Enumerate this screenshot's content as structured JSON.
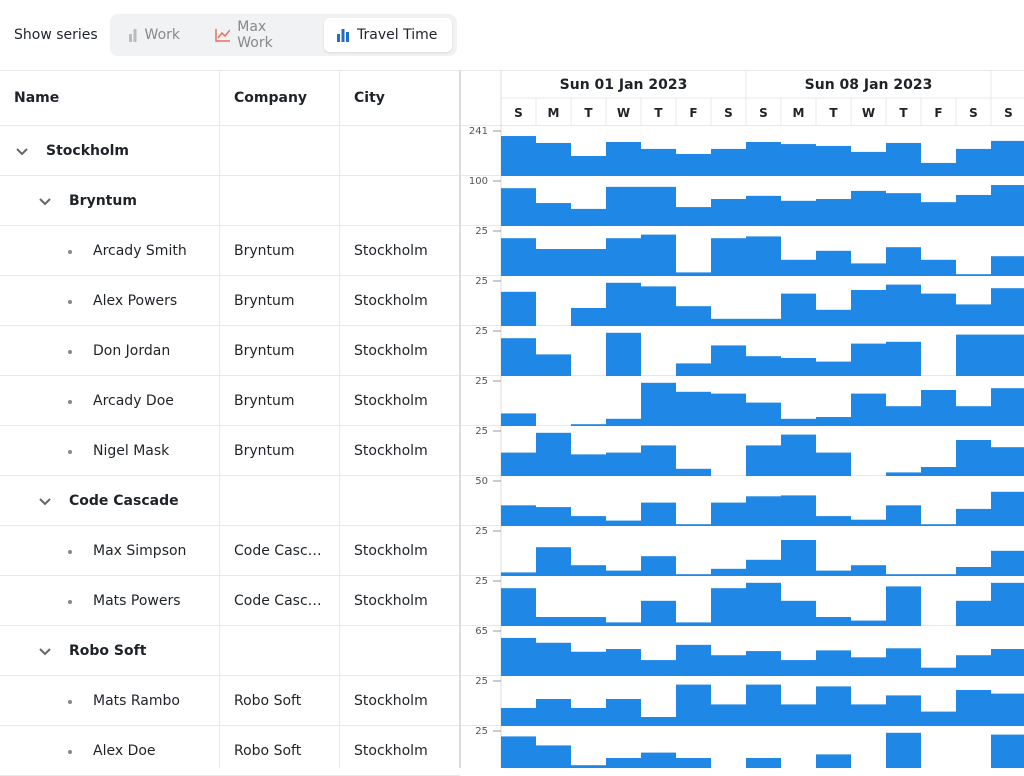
{
  "toolbar": {
    "label": "Show series",
    "buttons": [
      "Work",
      "Max Work",
      "Travel Time"
    ]
  },
  "grid": {
    "columns": [
      "Name",
      "Company",
      "City"
    ],
    "rows": [
      {
        "name": "Stockholm",
        "level": 0,
        "histogram": {
          "max": 241,
          "values": [
            214,
            177,
            107,
            182,
            145,
            118,
            145,
            182,
            171,
            161,
            129,
            177,
            70,
            145,
            188
          ]
        }
      },
      {
        "name": "Bryntum",
        "level": 1,
        "histogram": {
          "max": 100,
          "values": [
            84,
            51,
            38,
            87,
            87,
            42,
            60,
            67,
            56,
            60,
            78,
            73,
            53,
            69,
            91
          ]
        }
      },
      {
        "name": "Arcady Smith",
        "company": "Bryntum",
        "city": "Stockholm",
        "level": 2,
        "histogram": {
          "max": 25,
          "values": [
            21,
            15,
            15,
            21,
            23,
            2,
            21,
            22,
            9,
            14,
            7,
            16,
            9,
            1,
            11
          ]
        }
      },
      {
        "name": "Alex Powers",
        "company": "Bryntum",
        "city": "Stockholm",
        "level": 2,
        "histogram": {
          "max": 25,
          "values": [
            19,
            0,
            10,
            24,
            22,
            11,
            4,
            4,
            18,
            9,
            20,
            23,
            18,
            12,
            21
          ]
        }
      },
      {
        "name": "Don Jordan",
        "company": "Bryntum",
        "city": "Stockholm",
        "level": 2,
        "histogram": {
          "max": 25,
          "values": [
            21,
            12,
            0,
            24,
            0,
            7,
            17,
            11,
            10,
            8,
            18,
            19,
            0,
            23,
            23
          ]
        }
      },
      {
        "name": "Arcady Doe",
        "company": "Bryntum",
        "city": "Stockholm",
        "level": 2,
        "histogram": {
          "max": 25,
          "values": [
            7,
            0,
            1,
            4,
            24,
            19,
            18,
            13,
            4,
            5,
            18,
            11,
            20,
            11,
            21
          ]
        }
      },
      {
        "name": "Nigel Mask",
        "company": "Bryntum",
        "city": "Stockholm",
        "level": 2,
        "histogram": {
          "max": 25,
          "values": [
            13,
            24,
            12,
            13,
            17,
            4,
            0,
            17,
            23,
            13,
            0,
            2,
            5,
            20,
            16
          ]
        }
      },
      {
        "name": "Code Cascade",
        "level": 1,
        "histogram": {
          "max": 50,
          "values": [
            23,
            21,
            11,
            6,
            26,
            2,
            26,
            33,
            34,
            11,
            7,
            23,
            2,
            19,
            38
          ]
        }
      },
      {
        "name": "Max Simpson",
        "company": "Code Casc…",
        "city": "Stockholm",
        "level": 2,
        "histogram": {
          "max": 25,
          "values": [
            2,
            16,
            6,
            3,
            11,
            1,
            4,
            9,
            20,
            3,
            6,
            1,
            1,
            5,
            14
          ]
        }
      },
      {
        "name": "Mats Powers",
        "company": "Code Casc…",
        "city": "Stockholm",
        "level": 2,
        "histogram": {
          "max": 25,
          "values": [
            21,
            5,
            5,
            2,
            14,
            2,
            21,
            24,
            14,
            5,
            3,
            22,
            0,
            14,
            24
          ]
        }
      },
      {
        "name": "Robo Soft",
        "level": 1,
        "histogram": {
          "max": 65,
          "values": [
            55,
            48,
            35,
            39,
            23,
            45,
            30,
            36,
            23,
            37,
            27,
            40,
            12,
            30,
            39
          ]
        }
      },
      {
        "name": "Mats Rambo",
        "company": "Robo Soft",
        "city": "Stockholm",
        "level": 2,
        "histogram": {
          "max": 25,
          "values": [
            10,
            15,
            10,
            15,
            5,
            23,
            12,
            23,
            12,
            22,
            12,
            17,
            8,
            20,
            18
          ]
        }
      },
      {
        "name": "Alex Doe",
        "company": "Robo Soft",
        "city": "Stockholm",
        "level": 2,
        "histogram": {
          "max": 25,
          "values": [
            22,
            17,
            6,
            10,
            13,
            10,
            0,
            10,
            0,
            12,
            0,
            24,
            0,
            0,
            23
          ]
        }
      }
    ]
  },
  "timeline": {
    "weeks": [
      "Sun 01 Jan 2023",
      "Sun 08 Jan 2023"
    ],
    "days": [
      "S",
      "M",
      "T",
      "W",
      "T",
      "F",
      "S",
      "S",
      "M",
      "T",
      "W",
      "T",
      "F",
      "S",
      "S"
    ],
    "bar_color": "#1f87e5"
  }
}
